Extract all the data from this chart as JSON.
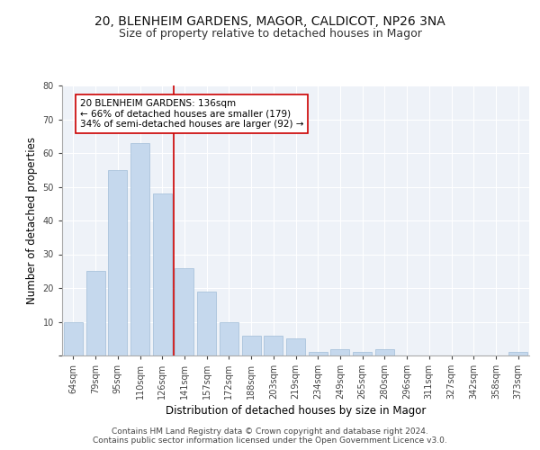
{
  "title1": "20, BLENHEIM GARDENS, MAGOR, CALDICOT, NP26 3NA",
  "title2": "Size of property relative to detached houses in Magor",
  "xlabel": "Distribution of detached houses by size in Magor",
  "ylabel": "Number of detached properties",
  "categories": [
    "64sqm",
    "79sqm",
    "95sqm",
    "110sqm",
    "126sqm",
    "141sqm",
    "157sqm",
    "172sqm",
    "188sqm",
    "203sqm",
    "219sqm",
    "234sqm",
    "249sqm",
    "265sqm",
    "280sqm",
    "296sqm",
    "311sqm",
    "327sqm",
    "342sqm",
    "358sqm",
    "373sqm"
  ],
  "values": [
    10,
    25,
    55,
    63,
    48,
    26,
    19,
    10,
    6,
    6,
    5,
    1,
    2,
    1,
    2,
    0,
    0,
    0,
    0,
    0,
    1
  ],
  "bar_color": "#c5d8ed",
  "bar_edge_color": "#a0bcd8",
  "vline_x_index": 4.5,
  "vline_color": "#cc0000",
  "annotation_text": "20 BLENHEIM GARDENS: 136sqm\n← 66% of detached houses are smaller (179)\n34% of semi-detached houses are larger (92) →",
  "annotation_box_color": "#ffffff",
  "annotation_box_edge_color": "#cc0000",
  "ylim": [
    0,
    80
  ],
  "yticks": [
    0,
    10,
    20,
    30,
    40,
    50,
    60,
    70,
    80
  ],
  "footer_text": "Contains HM Land Registry data © Crown copyright and database right 2024.\nContains public sector information licensed under the Open Government Licence v3.0.",
  "background_color": "#eef2f8",
  "title1_fontsize": 10,
  "title2_fontsize": 9,
  "xlabel_fontsize": 8.5,
  "ylabel_fontsize": 8.5,
  "annotation_fontsize": 7.5,
  "tick_fontsize": 7,
  "footer_fontsize": 6.5
}
